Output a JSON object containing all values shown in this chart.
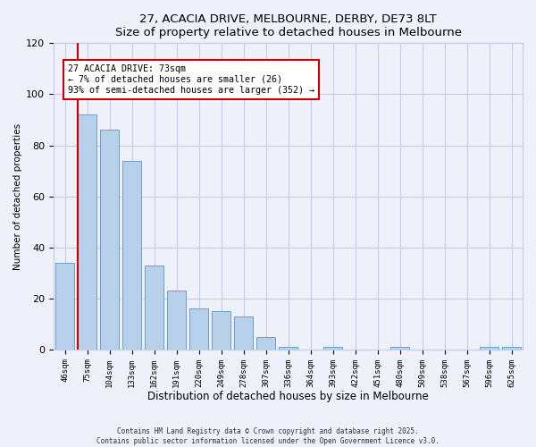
{
  "title": "27, ACACIA DRIVE, MELBOURNE, DERBY, DE73 8LT",
  "subtitle": "Size of property relative to detached houses in Melbourne",
  "xlabel": "Distribution of detached houses by size in Melbourne",
  "ylabel": "Number of detached properties",
  "categories": [
    "46sqm",
    "75sqm",
    "104sqm",
    "133sqm",
    "162sqm",
    "191sqm",
    "220sqm",
    "249sqm",
    "278sqm",
    "307sqm",
    "336sqm",
    "364sqm",
    "393sqm",
    "422sqm",
    "451sqm",
    "480sqm",
    "509sqm",
    "538sqm",
    "567sqm",
    "596sqm",
    "625sqm"
  ],
  "values": [
    34,
    92,
    86,
    74,
    33,
    23,
    16,
    15,
    13,
    5,
    1,
    0,
    1,
    0,
    0,
    1,
    0,
    0,
    0,
    1,
    1
  ],
  "bar_color": "#b8d0ea",
  "bar_edge_color": "#6aa0cc",
  "ylim": [
    0,
    120
  ],
  "yticks": [
    0,
    20,
    40,
    60,
    80,
    100,
    120
  ],
  "marker_color": "#cc0000",
  "annotation_title": "27 ACACIA DRIVE: 73sqm",
  "annotation_line1": "← 7% of detached houses are smaller (26)",
  "annotation_line2": "93% of semi-detached houses are larger (352) →",
  "footer_line1": "Contains HM Land Registry data © Crown copyright and database right 2025.",
  "footer_line2": "Contains public sector information licensed under the Open Government Licence v3.0.",
  "background_color": "#eef0fa",
  "grid_color": "#c8cce8"
}
